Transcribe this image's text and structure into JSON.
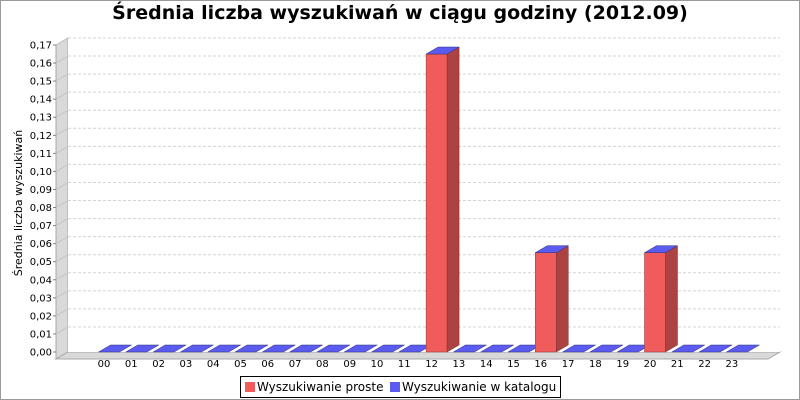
{
  "chart_data": {
    "type": "bar",
    "title": "Średnia liczba wyszukiwań w ciągu godziny (2012.09)",
    "xlabel": "",
    "ylabel": "Średnia liczba wyszukiwań",
    "categories": [
      "00",
      "01",
      "02",
      "03",
      "04",
      "05",
      "06",
      "07",
      "08",
      "09",
      "10",
      "11",
      "12",
      "13",
      "14",
      "15",
      "16",
      "17",
      "18",
      "19",
      "20",
      "21",
      "22",
      "23"
    ],
    "series": [
      {
        "name": "Wyszukiwanie proste",
        "color": "#f05b5b",
        "values": [
          0,
          0,
          0,
          0,
          0,
          0,
          0,
          0,
          0,
          0,
          0,
          0,
          0.165,
          0,
          0,
          0,
          0.055,
          0,
          0,
          0,
          0.055,
          0,
          0,
          0
        ]
      },
      {
        "name": "Wyszukiwanie w katalogu",
        "color": "#5b5bf0",
        "values": [
          0,
          0,
          0,
          0,
          0,
          0,
          0,
          0,
          0,
          0,
          0,
          0,
          0,
          0,
          0,
          0,
          0,
          0,
          0,
          0,
          0,
          0,
          0,
          0
        ]
      }
    ],
    "ylim": [
      0,
      0.17
    ],
    "yticks": [
      "0,00",
      "0,01",
      "0,02",
      "0,03",
      "0,04",
      "0,05",
      "0,06",
      "0,07",
      "0,08",
      "0,09",
      "0,10",
      "0,11",
      "0,12",
      "0,13",
      "0,14",
      "0,15",
      "0,16",
      "0,17"
    ],
    "grid": true,
    "legend": "bottom-center"
  }
}
